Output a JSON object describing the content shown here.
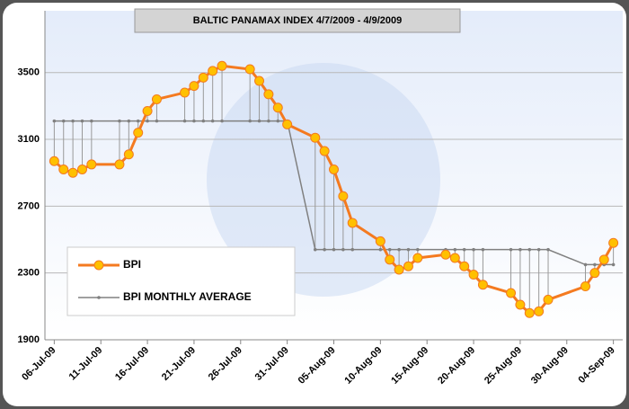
{
  "chart_data": {
    "type": "line",
    "title": "BALTIC PANAMAX INDEX  4/7/2009 - 4/9/2009",
    "x": [
      "2009-07-06",
      "2009-07-07",
      "2009-07-08",
      "2009-07-09",
      "2009-07-10",
      "2009-07-13",
      "2009-07-14",
      "2009-07-15",
      "2009-07-16",
      "2009-07-17",
      "2009-07-20",
      "2009-07-21",
      "2009-07-22",
      "2009-07-23",
      "2009-07-24",
      "2009-07-27",
      "2009-07-28",
      "2009-07-29",
      "2009-07-30",
      "2009-07-31",
      "2009-08-03",
      "2009-08-04",
      "2009-08-05",
      "2009-08-06",
      "2009-08-07",
      "2009-08-10",
      "2009-08-11",
      "2009-08-12",
      "2009-08-13",
      "2009-08-14",
      "2009-08-17",
      "2009-08-18",
      "2009-08-19",
      "2009-08-20",
      "2009-08-21",
      "2009-08-24",
      "2009-08-25",
      "2009-08-26",
      "2009-08-27",
      "2009-08-28",
      "2009-09-01",
      "2009-09-02",
      "2009-09-03",
      "2009-09-04"
    ],
    "series": [
      {
        "name": "BPI",
        "color": "#f47a20",
        "marker_color": "#ffc000",
        "values": [
          2970,
          2920,
          2900,
          2920,
          2950,
          2950,
          3010,
          3140,
          3270,
          3340,
          3380,
          3420,
          3470,
          3510,
          3540,
          3520,
          3450,
          3370,
          3290,
          3190,
          3110,
          3030,
          2920,
          2760,
          2600,
          2490,
          2380,
          2320,
          2340,
          2390,
          2410,
          2390,
          2340,
          2290,
          2230,
          2180,
          2110,
          2060,
          2070,
          2140,
          2220,
          2300,
          2380,
          2480
        ]
      },
      {
        "name": "BPI MONTHLY AVERAGE",
        "color": "#808080",
        "values": [
          3210,
          3210,
          3210,
          3210,
          3210,
          3210,
          3210,
          3210,
          3210,
          3210,
          3210,
          3210,
          3210,
          3210,
          3210,
          3210,
          3210,
          3210,
          3210,
          3210,
          2440,
          2440,
          2440,
          2440,
          2440,
          2440,
          2440,
          2440,
          2440,
          2440,
          2440,
          2440,
          2440,
          2440,
          2440,
          2440,
          2440,
          2440,
          2440,
          2440,
          2350,
          2350,
          2350,
          2350
        ]
      }
    ],
    "xlim": [
      "2009-07-05",
      "2009-09-05"
    ],
    "xticks": [
      {
        "value": "2009-07-06",
        "label": "06-Jul-09"
      },
      {
        "value": "2009-07-11",
        "label": "11-Jul-09"
      },
      {
        "value": "2009-07-16",
        "label": "16-Jul-09"
      },
      {
        "value": "2009-07-21",
        "label": "21-Jul-09"
      },
      {
        "value": "2009-07-26",
        "label": "26-Jul-09"
      },
      {
        "value": "2009-07-31",
        "label": "31-Jul-09"
      },
      {
        "value": "2009-08-05",
        "label": "05-Aug-09"
      },
      {
        "value": "2009-08-10",
        "label": "10-Aug-09"
      },
      {
        "value": "2009-08-15",
        "label": "15-Aug-09"
      },
      {
        "value": "2009-08-20",
        "label": "20-Aug-09"
      },
      {
        "value": "2009-08-25",
        "label": "25-Aug-09"
      },
      {
        "value": "2009-08-30",
        "label": "30-Aug-09"
      },
      {
        "value": "2009-09-04",
        "label": "04-Sep-09"
      }
    ],
    "ylim": [
      1900,
      3870
    ],
    "yticks": [
      1900,
      2300,
      2700,
      3100,
      3500
    ],
    "grid": true,
    "legend": "lower left"
  }
}
